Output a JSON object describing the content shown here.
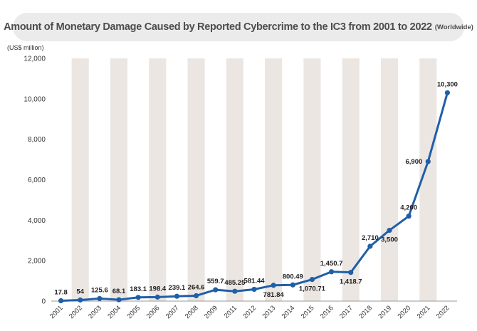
{
  "chart_data": {
    "type": "line",
    "title": "Amount of Monetary Damage Caused by Reported Cybercrime to the IC3 from 2001 to 2022",
    "subtitle": "(Worldwide)",
    "ylabel": "(US$ million)",
    "xlabel": "",
    "ylim": [
      0,
      12000
    ],
    "yticks": [
      0,
      2000,
      4000,
      6000,
      8000,
      10000,
      12000
    ],
    "ytick_labels": [
      "0",
      "2,000",
      "4,000",
      "6,000",
      "8,000",
      "10,000",
      "12,000"
    ],
    "categories": [
      "2001",
      "2002",
      "2003",
      "2004",
      "2005",
      "2006",
      "2007",
      "2008",
      "2009",
      "2011",
      "2012",
      "2013",
      "2014",
      "2015",
      "2016",
      "2017",
      "2018",
      "2019",
      "2020",
      "2021",
      "2022"
    ],
    "values": [
      17.8,
      54,
      125.6,
      68.1,
      183.1,
      198.4,
      239.1,
      264.6,
      559.7,
      485.25,
      581.44,
      781.84,
      800.49,
      1070.71,
      1450.7,
      1418.7,
      2710,
      3500,
      4200,
      6900,
      10300
    ],
    "value_labels": [
      "17.8",
      "54",
      "125.6",
      "68.1",
      "183.1",
      "198.4",
      "239.1",
      "264.6",
      "559.7",
      "485.25",
      "581.44",
      "781.84",
      "800.49",
      "1,070.71",
      "1,450.7",
      "1,418.7",
      "2,710",
      "3,500",
      "4,200",
      "6,900",
      "10,300"
    ],
    "label_position": [
      "above",
      "above",
      "above",
      "above",
      "above",
      "above",
      "above",
      "above",
      "above",
      "above",
      "above",
      "below",
      "above",
      "below",
      "above",
      "below",
      "above",
      "below",
      "above",
      "left",
      "above"
    ],
    "grid": false,
    "background_bands": "alternating",
    "line_color": "#1f5fa8",
    "band_color": "#ece6e3"
  }
}
